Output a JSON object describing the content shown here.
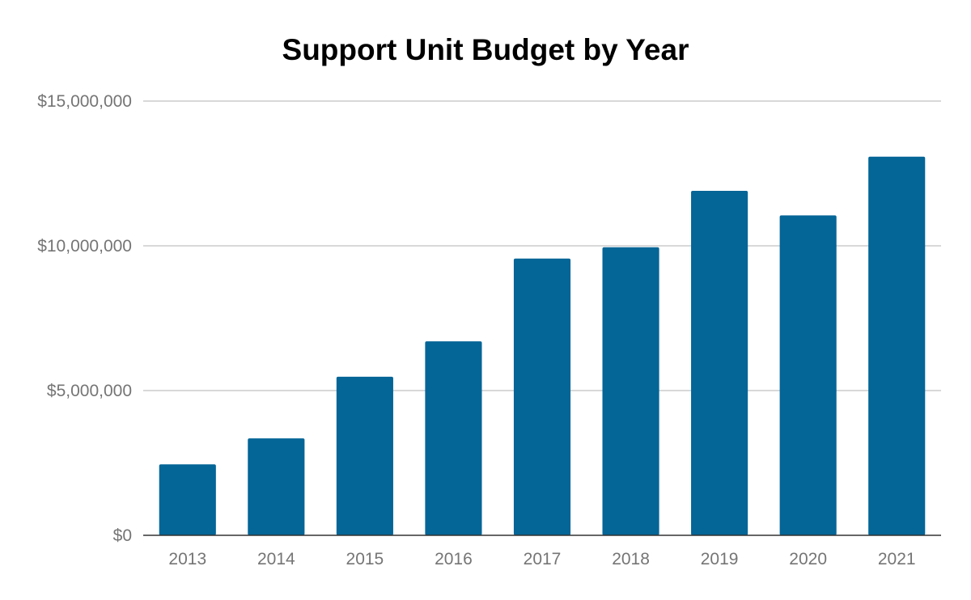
{
  "chart_data": {
    "type": "bar",
    "title": "Support Unit Budget by Year",
    "xlabel": "",
    "ylabel": "",
    "categories": [
      "2013",
      "2014",
      "2015",
      "2016",
      "2017",
      "2018",
      "2019",
      "2020",
      "2021"
    ],
    "values": [
      2450000,
      3350000,
      5480000,
      6700000,
      9560000,
      9950000,
      11900000,
      11050000,
      13080000
    ],
    "ylim": [
      0,
      15000000
    ],
    "y_ticks": [
      0,
      5000000,
      10000000,
      15000000
    ],
    "y_tick_labels": [
      "$0",
      "$5,000,000",
      "$10,000,000",
      "$15,000,000"
    ],
    "grid": true,
    "legend": "none",
    "colors": {
      "bar": "#046597",
      "grid": "#cccccc",
      "baseline": "#333333",
      "tick_text": "#757575",
      "title_text": "#000000"
    }
  }
}
